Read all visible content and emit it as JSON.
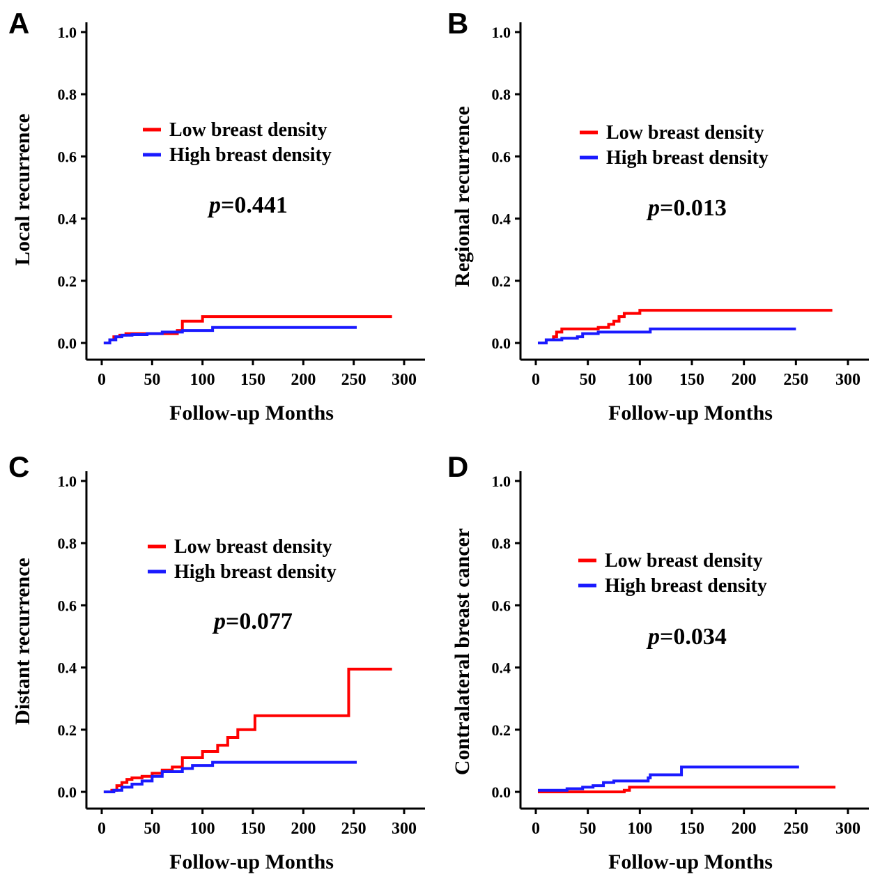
{
  "colors": {
    "low": "#ff0000",
    "high": "#1a1aff"
  },
  "chart_data": [
    {
      "panel": "A",
      "type": "line",
      "ylabel": "Local recurrence",
      "xlabel": "Follow-up Months",
      "xlim": [
        0,
        300
      ],
      "ylim": [
        0,
        1.0
      ],
      "xticks": [
        0,
        50,
        100,
        150,
        200,
        250,
        300
      ],
      "yticks": [
        0.0,
        0.2,
        0.4,
        0.6,
        0.8,
        1.0
      ],
      "annotation": {
        "p_symbol": "p",
        "p_value": "=0.441"
      },
      "series": [
        {
          "name": "Low breast density",
          "color_key": "low",
          "x": [
            2,
            8,
            12,
            18,
            24,
            50,
            75,
            80,
            100,
            288
          ],
          "y": [
            0.0,
            0.01,
            0.02,
            0.025,
            0.03,
            0.03,
            0.04,
            0.07,
            0.085,
            0.085
          ]
        },
        {
          "name": "High breast density",
          "color_key": "high",
          "x": [
            2,
            8,
            14,
            20,
            30,
            45,
            60,
            80,
            110,
            253
          ],
          "y": [
            0.0,
            0.01,
            0.02,
            0.025,
            0.027,
            0.03,
            0.035,
            0.04,
            0.05,
            0.05
          ]
        }
      ]
    },
    {
      "panel": "B",
      "type": "line",
      "ylabel": "Regional recurrence",
      "xlabel": "Follow-up Months",
      "xlim": [
        0,
        300
      ],
      "ylim": [
        0,
        1.0
      ],
      "xticks": [
        0,
        50,
        100,
        150,
        200,
        250,
        300
      ],
      "yticks": [
        0.0,
        0.2,
        0.4,
        0.6,
        0.8,
        1.0
      ],
      "annotation": {
        "p_symbol": "p",
        "p_value": "=0.013"
      },
      "series": [
        {
          "name": "Low breast density",
          "color_key": "low",
          "x": [
            2,
            10,
            17,
            20,
            25,
            60,
            70,
            75,
            80,
            85,
            100,
            285
          ],
          "y": [
            0.0,
            0.01,
            0.02,
            0.035,
            0.045,
            0.05,
            0.06,
            0.07,
            0.085,
            0.095,
            0.105,
            0.105
          ]
        },
        {
          "name": "High breast density",
          "color_key": "high",
          "x": [
            2,
            10,
            25,
            40,
            45,
            60,
            110,
            250
          ],
          "y": [
            0.0,
            0.01,
            0.015,
            0.02,
            0.03,
            0.035,
            0.045,
            0.045
          ]
        }
      ]
    },
    {
      "panel": "C",
      "type": "line",
      "ylabel": "Distant recurrence",
      "xlabel": "Follow-up Months",
      "xlim": [
        0,
        300
      ],
      "ylim": [
        0,
        1.0
      ],
      "xticks": [
        0,
        50,
        100,
        150,
        200,
        250,
        300
      ],
      "yticks": [
        0.0,
        0.2,
        0.4,
        0.6,
        0.8,
        1.0
      ],
      "annotation": {
        "p_symbol": "p",
        "p_value": "=0.077"
      },
      "series": [
        {
          "name": "Low breast density",
          "color_key": "low",
          "x": [
            2,
            10,
            15,
            20,
            25,
            30,
            40,
            50,
            60,
            70,
            80,
            100,
            115,
            125,
            135,
            152,
            245,
            288
          ],
          "y": [
            0.0,
            0.005,
            0.02,
            0.03,
            0.04,
            0.045,
            0.05,
            0.06,
            0.07,
            0.08,
            0.11,
            0.13,
            0.15,
            0.175,
            0.2,
            0.245,
            0.395,
            0.395
          ]
        },
        {
          "name": "High breast density",
          "color_key": "high",
          "x": [
            2,
            12,
            20,
            30,
            40,
            50,
            60,
            80,
            90,
            110,
            253
          ],
          "y": [
            0.0,
            0.005,
            0.015,
            0.025,
            0.035,
            0.05,
            0.065,
            0.075,
            0.085,
            0.095,
            0.095
          ]
        }
      ]
    },
    {
      "panel": "D",
      "type": "line",
      "ylabel": "Contralateral breast cancer",
      "xlabel": "Follow-up Months",
      "xlim": [
        0,
        300
      ],
      "ylim": [
        0,
        1.0
      ],
      "xticks": [
        0,
        50,
        100,
        150,
        200,
        250,
        300
      ],
      "yticks": [
        0.0,
        0.2,
        0.4,
        0.6,
        0.8,
        1.0
      ],
      "annotation": {
        "p_symbol": "p",
        "p_value": "=0.034"
      },
      "series": [
        {
          "name": "Low breast density",
          "color_key": "low",
          "x": [
            2,
            85,
            90,
            288
          ],
          "y": [
            0.0,
            0.005,
            0.015,
            0.015
          ]
        },
        {
          "name": "High breast density",
          "color_key": "high",
          "x": [
            2,
            30,
            45,
            55,
            65,
            75,
            108,
            110,
            140,
            253
          ],
          "y": [
            0.005,
            0.01,
            0.015,
            0.02,
            0.03,
            0.035,
            0.045,
            0.055,
            0.08,
            0.08
          ]
        }
      ]
    }
  ]
}
